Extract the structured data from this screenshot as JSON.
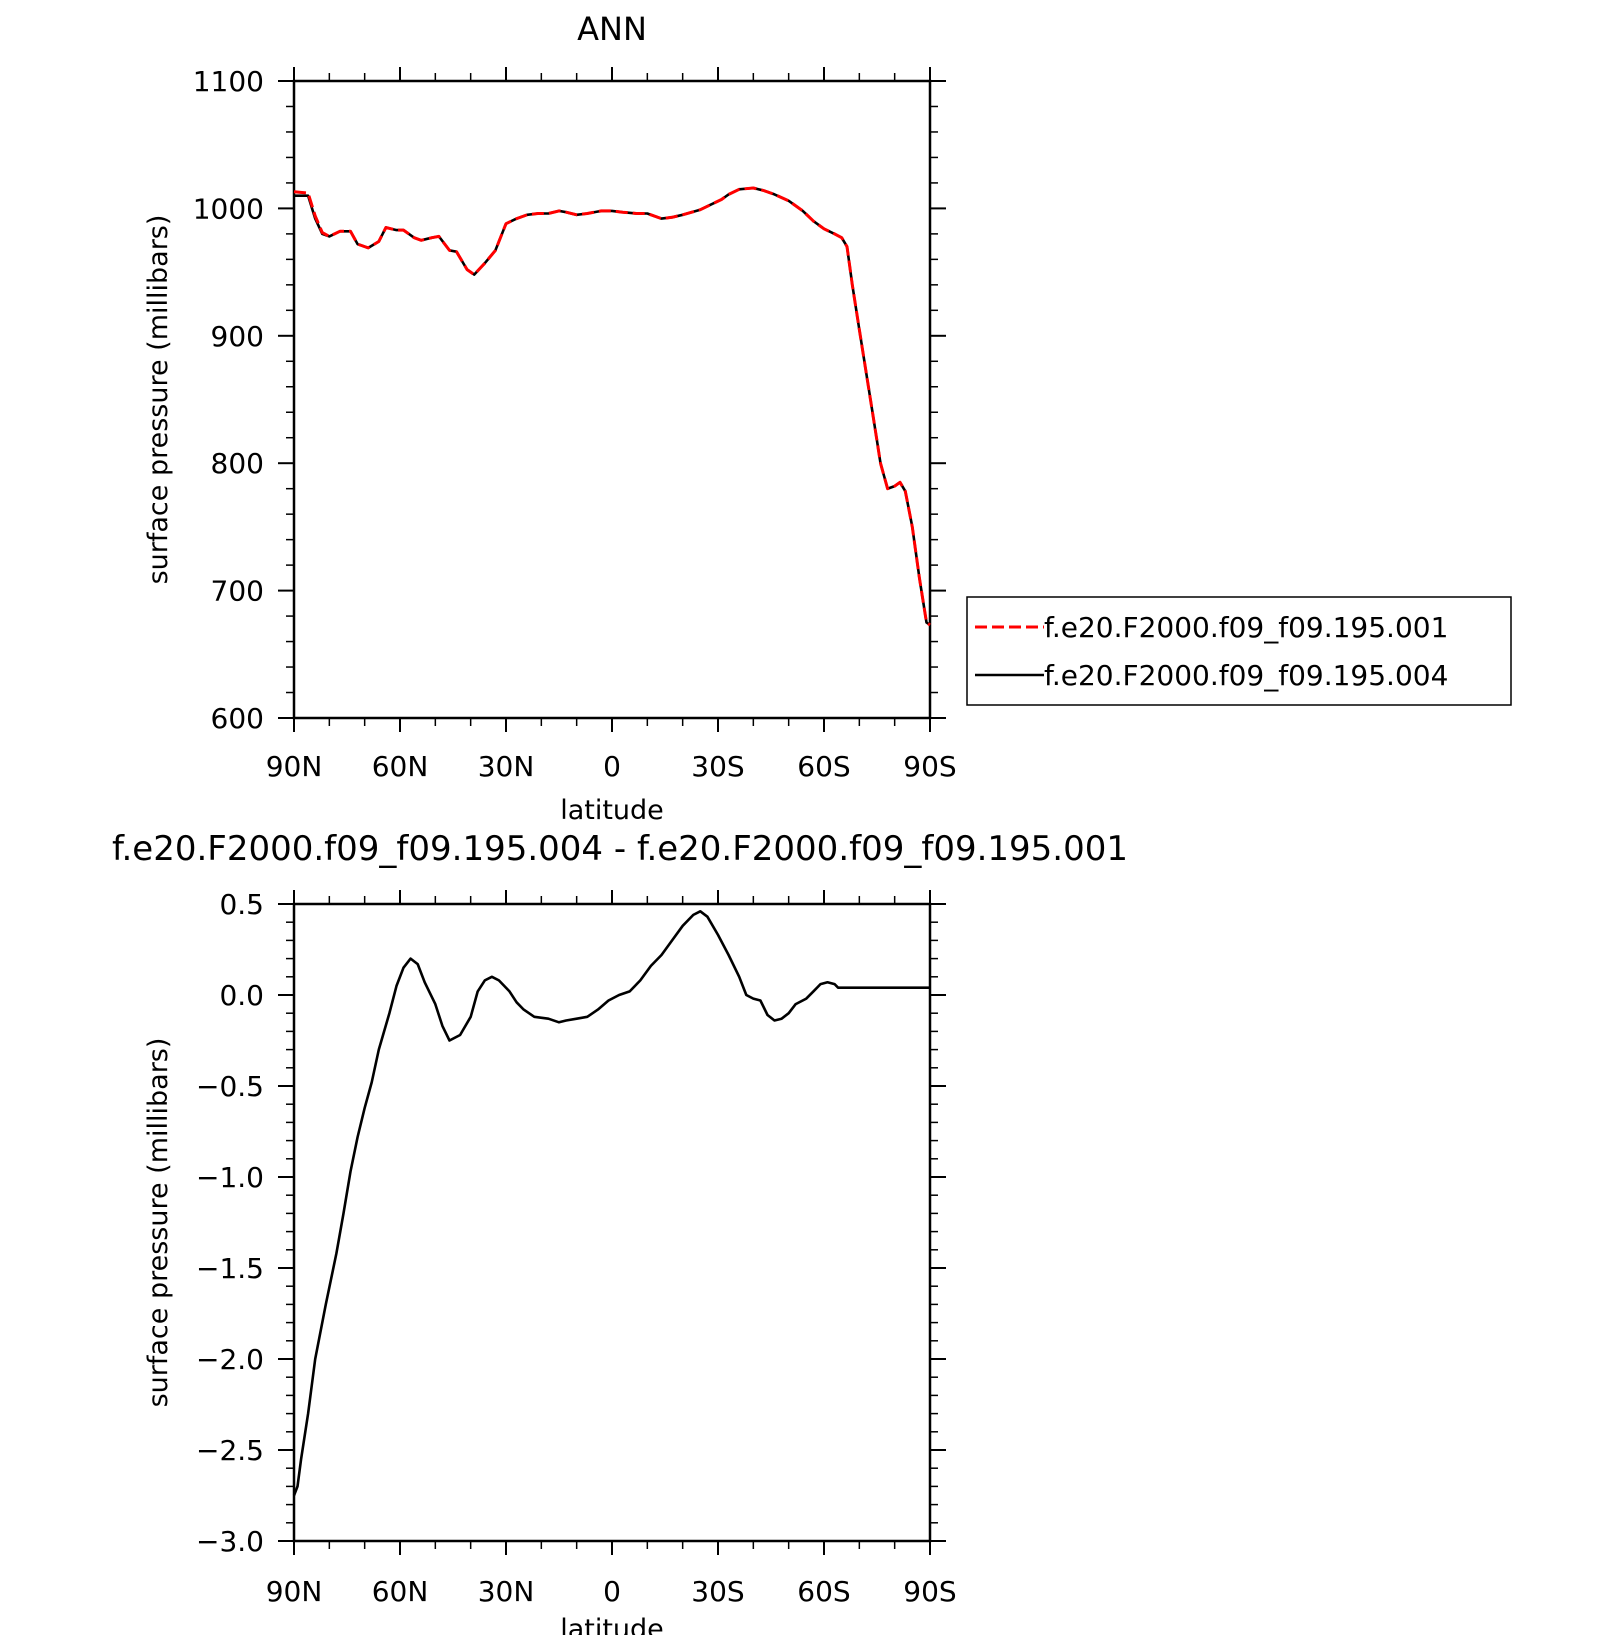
{
  "chart_data": [
    {
      "type": "line",
      "title": "ANN",
      "xlabel": "latitude",
      "ylabel": "surface pressure (millibars)",
      "xlim": [
        90,
        -90
      ],
      "ylim": [
        600,
        1100
      ],
      "x_ticks": [
        90,
        60,
        30,
        0,
        -30,
        -60,
        -90
      ],
      "x_tick_labels": [
        "90N",
        "60N",
        "30N",
        "0",
        "30S",
        "60S",
        "90S"
      ],
      "y_ticks": [
        600,
        700,
        800,
        900,
        1000,
        1100
      ],
      "y_tick_labels": [
        "600",
        "700",
        "800",
        "900",
        "1000",
        "1100"
      ],
      "legend_position": "right",
      "series": [
        {
          "name": "f.e20.F2000.f09_f09.195.004",
          "color": "#000000",
          "dash": "solid",
          "points": [
            [
              90,
              1010
            ],
            [
              86,
              1010
            ],
            [
              84,
              992
            ],
            [
              82,
              980
            ],
            [
              80,
              978
            ],
            [
              77,
              982
            ],
            [
              74,
              982
            ],
            [
              72,
              972
            ],
            [
              69,
              969
            ],
            [
              66,
              974
            ],
            [
              64,
              985
            ],
            [
              61,
              983
            ],
            [
              59,
              983
            ],
            [
              56,
              977
            ],
            [
              54,
              975
            ],
            [
              51,
              977
            ],
            [
              49,
              978
            ],
            [
              46,
              967
            ],
            [
              44,
              966
            ],
            [
              41,
              952
            ],
            [
              39,
              948
            ],
            [
              36,
              957
            ],
            [
              33,
              967
            ],
            [
              30,
              988
            ],
            [
              27,
              992
            ],
            [
              24,
              995
            ],
            [
              21,
              996
            ],
            [
              18,
              996
            ],
            [
              15,
              998
            ],
            [
              13,
              997
            ],
            [
              10,
              995
            ],
            [
              7,
              996
            ],
            [
              3,
              998
            ],
            [
              0,
              998
            ],
            [
              -3,
              997
            ],
            [
              -7,
              996
            ],
            [
              -10,
              996
            ],
            [
              -14,
              992
            ],
            [
              -17,
              993
            ],
            [
              -20,
              995
            ],
            [
              -25,
              999
            ],
            [
              -28,
              1003
            ],
            [
              -31,
              1007
            ],
            [
              -33,
              1011
            ],
            [
              -36,
              1015
            ],
            [
              -40,
              1016
            ],
            [
              -43,
              1014
            ],
            [
              -46,
              1011
            ],
            [
              -50,
              1006
            ],
            [
              -54,
              998
            ],
            [
              -57,
              990
            ],
            [
              -60,
              984
            ],
            [
              -63,
              980
            ],
            [
              -65,
              977
            ],
            [
              -66.5,
              970
            ],
            [
              -68,
              940
            ],
            [
              -70,
              905
            ],
            [
              -72,
              870
            ],
            [
              -74,
              835
            ],
            [
              -76,
              800
            ],
            [
              -78,
              780
            ],
            [
              -80,
              782
            ],
            [
              -81.5,
              785
            ],
            [
              -83,
              778
            ],
            [
              -85,
              750
            ],
            [
              -87,
              710
            ],
            [
              -89,
              675
            ],
            [
              -90,
              673
            ]
          ]
        },
        {
          "name": "f.e20.F2000.f09_f09.195.001",
          "color": "#ff0000",
          "dash": "dashed",
          "points": [
            [
              90,
              1013
            ],
            [
              86,
              1012
            ],
            [
              84,
              994
            ],
            [
              82,
              981
            ],
            [
              80,
              978
            ],
            [
              77,
              982
            ],
            [
              74,
              982
            ],
            [
              72,
              972
            ],
            [
              69,
              969
            ],
            [
              66,
              974
            ],
            [
              64,
              985
            ],
            [
              61,
              983
            ],
            [
              59,
              983
            ],
            [
              56,
              977
            ],
            [
              54,
              975
            ],
            [
              51,
              977
            ],
            [
              49,
              978
            ],
            [
              46,
              967
            ],
            [
              44,
              966
            ],
            [
              41,
              952
            ],
            [
              39,
              948
            ],
            [
              36,
              957
            ],
            [
              33,
              967
            ],
            [
              30,
              988
            ],
            [
              27,
              992
            ],
            [
              24,
              995
            ],
            [
              21,
              996
            ],
            [
              18,
              996
            ],
            [
              15,
              998
            ],
            [
              13,
              997
            ],
            [
              10,
              995
            ],
            [
              7,
              996
            ],
            [
              3,
              998
            ],
            [
              0,
              998
            ],
            [
              -3,
              997
            ],
            [
              -7,
              996
            ],
            [
              -10,
              996
            ],
            [
              -14,
              992
            ],
            [
              -17,
              993
            ],
            [
              -20,
              995
            ],
            [
              -25,
              999
            ],
            [
              -28,
              1003
            ],
            [
              -31,
              1007
            ],
            [
              -33,
              1011
            ],
            [
              -36,
              1015
            ],
            [
              -40,
              1016
            ],
            [
              -43,
              1014
            ],
            [
              -46,
              1011
            ],
            [
              -50,
              1006
            ],
            [
              -54,
              998
            ],
            [
              -57,
              990
            ],
            [
              -60,
              984
            ],
            [
              -63,
              980
            ],
            [
              -65,
              977
            ],
            [
              -66.5,
              970
            ],
            [
              -68,
              940
            ],
            [
              -70,
              905
            ],
            [
              -72,
              870
            ],
            [
              -74,
              835
            ],
            [
              -76,
              800
            ],
            [
              -78,
              780
            ],
            [
              -80,
              782
            ],
            [
              -81.5,
              785
            ],
            [
              -83,
              778
            ],
            [
              -85,
              750
            ],
            [
              -87,
              710
            ],
            [
              -89,
              675
            ],
            [
              -90,
              673
            ]
          ]
        }
      ]
    },
    {
      "type": "line",
      "title": "f.e20.F2000.f09_f09.195.004 - f.e20.F2000.f09_f09.195.001",
      "xlabel": "latitude",
      "ylabel": "surface pressure (millibars)",
      "xlim": [
        90,
        -90
      ],
      "ylim": [
        -3.0,
        0.5
      ],
      "x_ticks": [
        90,
        60,
        30,
        0,
        -30,
        -60,
        -90
      ],
      "x_tick_labels": [
        "90N",
        "60N",
        "30N",
        "0",
        "30S",
        "60S",
        "90S"
      ],
      "y_ticks": [
        0.5,
        0.0,
        -0.5,
        -1.0,
        -1.5,
        -2.0,
        -2.5,
        -3.0
      ],
      "y_tick_labels": [
        "0.5",
        "0.0",
        "−0.5",
        "−1.0",
        "−1.5",
        "−2.0",
        "−2.5",
        "−3.0"
      ],
      "series": [
        {
          "color": "#000000",
          "dash": "solid",
          "points": [
            [
              90,
              -2.75
            ],
            [
              89,
              -2.7
            ],
            [
              88,
              -2.55
            ],
            [
              86,
              -2.3
            ],
            [
              84,
              -2.0
            ],
            [
              81,
              -1.7
            ],
            [
              78,
              -1.42
            ],
            [
              76,
              -1.2
            ],
            [
              74,
              -0.97
            ],
            [
              72,
              -0.78
            ],
            [
              70,
              -0.62
            ],
            [
              68,
              -0.48
            ],
            [
              66,
              -0.3
            ],
            [
              63,
              -0.1
            ],
            [
              61,
              0.05
            ],
            [
              59,
              0.15
            ],
            [
              57,
              0.2
            ],
            [
              55,
              0.17
            ],
            [
              53,
              0.07
            ],
            [
              50,
              -0.05
            ],
            [
              48,
              -0.17
            ],
            [
              46,
              -0.25
            ],
            [
              43,
              -0.22
            ],
            [
              40,
              -0.12
            ],
            [
              38,
              0.02
            ],
            [
              36,
              0.08
            ],
            [
              34,
              0.1
            ],
            [
              32,
              0.08
            ],
            [
              29,
              0.02
            ],
            [
              27,
              -0.04
            ],
            [
              25,
              -0.08
            ],
            [
              22,
              -0.12
            ],
            [
              18,
              -0.13
            ],
            [
              15,
              -0.15
            ],
            [
              13,
              -0.14
            ],
            [
              10,
              -0.13
            ],
            [
              7,
              -0.12
            ],
            [
              4,
              -0.08
            ],
            [
              1,
              -0.03
            ],
            [
              -2,
              0.0
            ],
            [
              -5,
              0.02
            ],
            [
              -8,
              0.08
            ],
            [
              -11,
              0.16
            ],
            [
              -14,
              0.22
            ],
            [
              -17,
              0.3
            ],
            [
              -20,
              0.38
            ],
            [
              -23,
              0.44
            ],
            [
              -25,
              0.46
            ],
            [
              -27,
              0.43
            ],
            [
              -30,
              0.33
            ],
            [
              -33,
              0.22
            ],
            [
              -36,
              0.1
            ],
            [
              -38,
              0.0
            ],
            [
              -40,
              -0.02
            ],
            [
              -42,
              -0.03
            ],
            [
              -44,
              -0.11
            ],
            [
              -46,
              -0.14
            ],
            [
              -48,
              -0.13
            ],
            [
              -50,
              -0.1
            ],
            [
              -52,
              -0.05
            ],
            [
              -55,
              -0.02
            ],
            [
              -57,
              0.02
            ],
            [
              -59,
              0.06
            ],
            [
              -61,
              0.07
            ],
            [
              -63,
              0.06
            ],
            [
              -64,
              0.04
            ],
            [
              -90,
              0.04
            ]
          ]
        }
      ]
    }
  ]
}
